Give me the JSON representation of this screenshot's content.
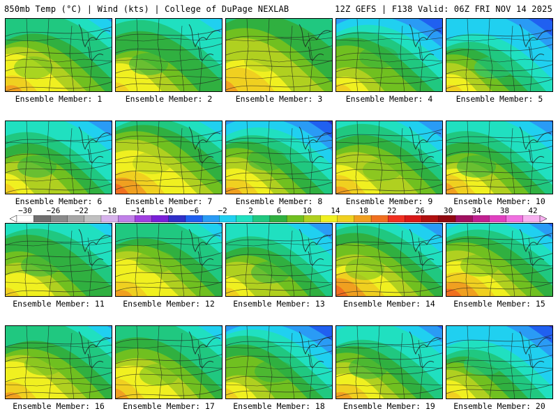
{
  "header": {
    "left_title": "850mb Temp (°C) | Wind (kts) | College of DuPage NEXLAB",
    "right_title": "12Z GEFS | F138 Valid: 06Z FRI NOV 14 2025"
  },
  "label_prefix": "Ensemble Member:",
  "members": [
    {
      "id": 1,
      "label": "Ensemble Member: 1",
      "cold": 0.55,
      "warm": 0.7
    },
    {
      "id": 2,
      "label": "Ensemble Member: 2",
      "cold": 0.6,
      "warm": 0.45
    },
    {
      "id": 3,
      "label": "Ensemble Member: 3",
      "cold": 0.35,
      "warm": 0.75
    },
    {
      "id": 4,
      "label": "Ensemble Member: 4",
      "cold": 0.8,
      "warm": 0.4
    },
    {
      "id": 5,
      "label": "Ensemble Member: 5",
      "cold": 0.95,
      "warm": 0.35
    },
    {
      "id": 6,
      "label": "Ensemble Member: 6",
      "cold": 0.75,
      "warm": 0.4
    },
    {
      "id": 7,
      "label": "Ensemble Member: 7",
      "cold": 0.6,
      "warm": 0.85
    },
    {
      "id": 8,
      "label": "Ensemble Member: 8",
      "cold": 0.95,
      "warm": 0.55
    },
    {
      "id": 9,
      "label": "Ensemble Member: 9",
      "cold": 0.75,
      "warm": 0.75
    },
    {
      "id": 10,
      "label": "Ensemble Member: 10",
      "cold": 0.9,
      "warm": 0.7
    },
    {
      "id": 11,
      "label": "Ensemble Member: 11",
      "cold": 0.55,
      "warm": 0.5
    },
    {
      "id": 12,
      "label": "Ensemble Member: 12",
      "cold": 0.55,
      "warm": 0.6
    },
    {
      "id": 13,
      "label": "Ensemble Member: 13",
      "cold": 0.75,
      "warm": 0.5
    },
    {
      "id": 14,
      "label": "Ensemble Member: 14",
      "cold": 0.9,
      "warm": 0.85
    },
    {
      "id": 15,
      "label": "Ensemble Member: 15",
      "cold": 0.85,
      "warm": 0.85
    },
    {
      "id": 16,
      "label": "Ensemble Member: 16",
      "cold": 0.5,
      "warm": 0.8
    },
    {
      "id": 17,
      "label": "Ensemble Member: 17",
      "cold": 0.6,
      "warm": 0.8
    },
    {
      "id": 18,
      "label": "Ensemble Member: 18",
      "cold": 0.8,
      "warm": 0.5
    },
    {
      "id": 19,
      "label": "Ensemble Member: 19",
      "cold": 0.9,
      "warm": 0.55
    },
    {
      "id": 20,
      "label": "Ensemble Member: 20",
      "cold": 0.95,
      "warm": 0.3
    }
  ],
  "colorbar": {
    "ticks": [
      "-30",
      "-26",
      "-22",
      "-18",
      "-14",
      "-10",
      "-6",
      "-2",
      "2",
      "6",
      "10",
      "14",
      "18",
      "22",
      "26",
      "30",
      "34",
      "38",
      "42"
    ],
    "colors": [
      "#ffffff",
      "#6f6f6f",
      "#8a8a8a",
      "#a6a6a6",
      "#c0c0c0",
      "#d7b3ec",
      "#c080e8",
      "#a040e0",
      "#7a20d8",
      "#3030c8",
      "#2060f0",
      "#2a9bf5",
      "#20d0f0",
      "#20e0c0",
      "#20c880",
      "#30b040",
      "#70c020",
      "#b0d020",
      "#f0f020",
      "#f0d020",
      "#f0a020",
      "#f07020",
      "#f03020",
      "#d81818",
      "#b01010",
      "#900810",
      "#a01060",
      "#c02090",
      "#e040c0",
      "#f070e0",
      "#f8b0f0"
    ]
  }
}
